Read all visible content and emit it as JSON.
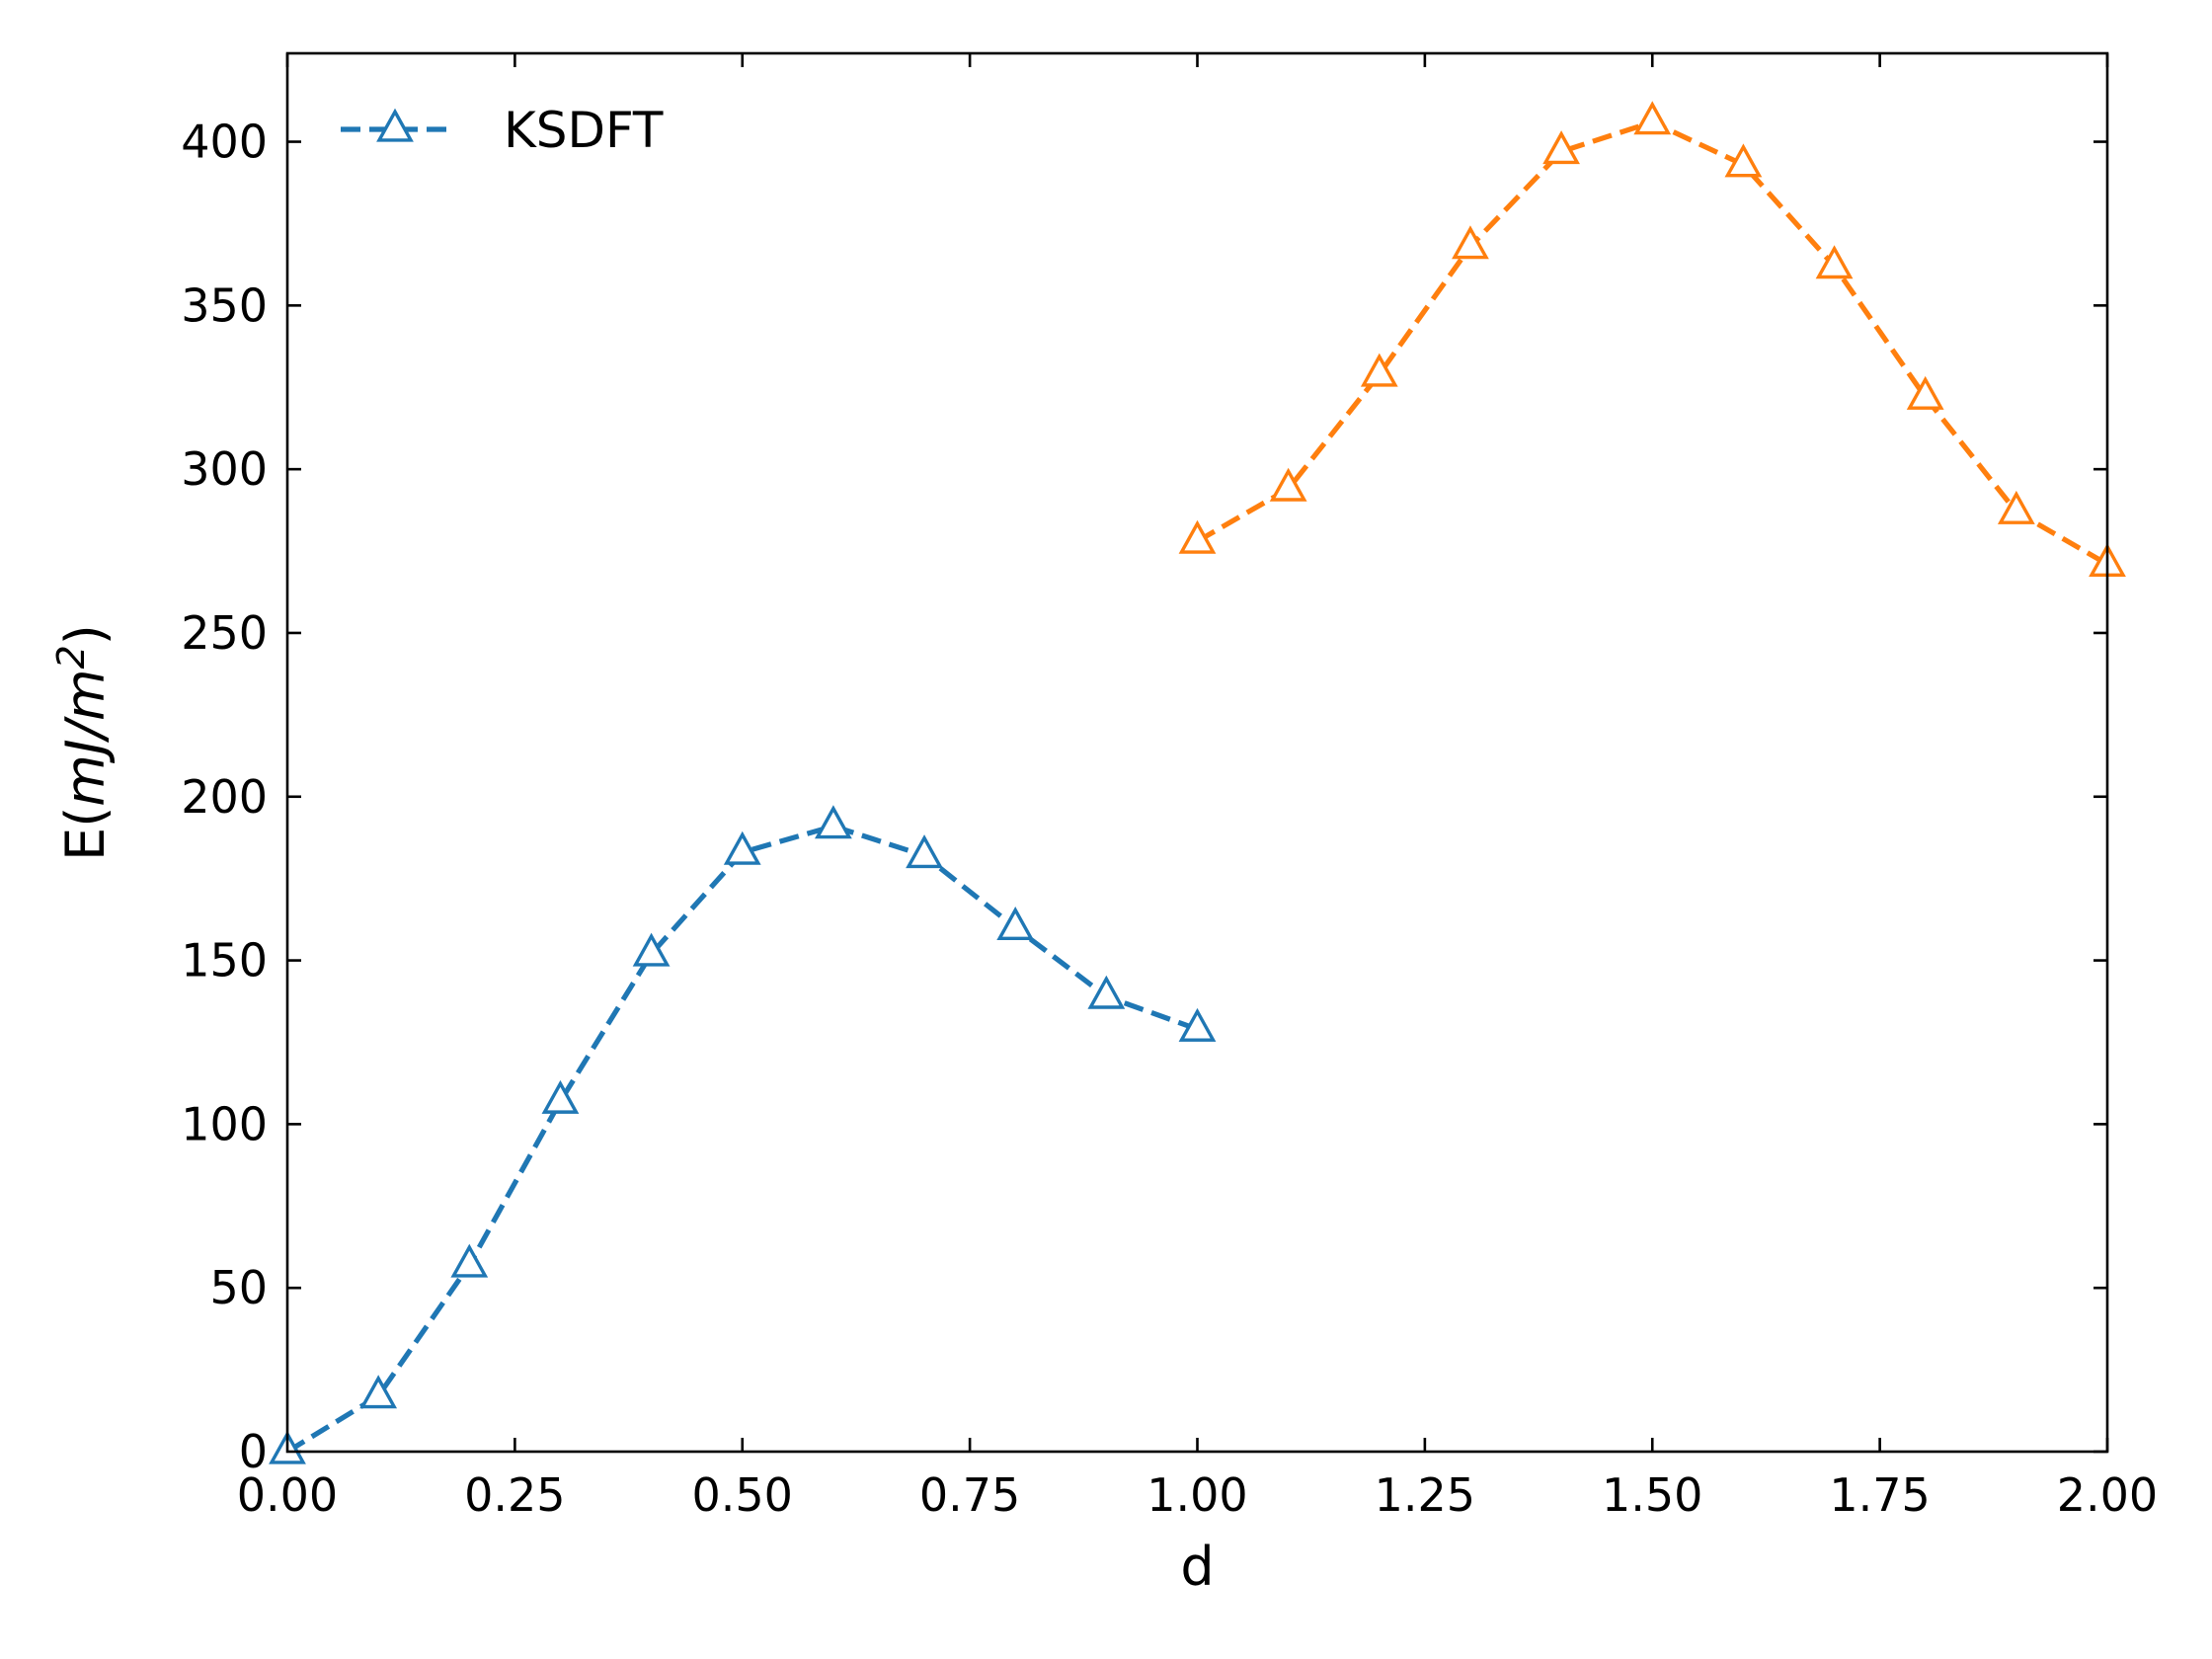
{
  "chart_data": {
    "type": "line",
    "title": "",
    "xlabel": "d",
    "ylabel": "E(mJ/m²)",
    "ylabel_parts": {
      "prefix": "E(",
      "math": "mJ/m",
      "sup": "2",
      "suffix": ")"
    },
    "xlim": [
      0,
      2
    ],
    "ylim": [
      0,
      400
    ],
    "y_top": 427,
    "x_ticks": [
      0,
      0.25,
      0.5,
      0.75,
      1.0,
      1.25,
      1.5,
      1.75,
      2.0
    ],
    "x_tick_labels": [
      "0.00",
      "0.25",
      "0.50",
      "0.75",
      "1.00",
      "1.25",
      "1.50",
      "1.75",
      "2.00"
    ],
    "y_ticks": [
      0,
      50,
      100,
      150,
      200,
      250,
      300,
      350,
      400
    ],
    "y_tick_labels": [
      "0",
      "50",
      "100",
      "150",
      "200",
      "250",
      "300",
      "350",
      "400"
    ],
    "grid": false,
    "legend_position": "top-left",
    "legend_entries": [
      "KSDFT"
    ],
    "series": [
      {
        "name": "KSDFT",
        "color": "#1f77b4",
        "marker": "triangle-open",
        "line_style": "dashed",
        "x": [
          0.0,
          0.1,
          0.2,
          0.3,
          0.4,
          0.5,
          0.6,
          0.7,
          0.8,
          0.9,
          1.0
        ],
        "y": [
          0,
          17,
          57,
          107,
          152,
          183,
          191,
          182,
          160,
          139,
          129
        ]
      },
      {
        "color": "#ff7f0e",
        "marker": "triangle-open",
        "line_style": "dashed",
        "x": [
          1.0,
          1.1,
          1.2,
          1.3,
          1.4,
          1.5,
          1.6,
          1.7,
          1.8,
          1.9,
          2.0
        ],
        "y": [
          278,
          294,
          329,
          368,
          397,
          406,
          393,
          362,
          322,
          287,
          271
        ]
      }
    ]
  }
}
